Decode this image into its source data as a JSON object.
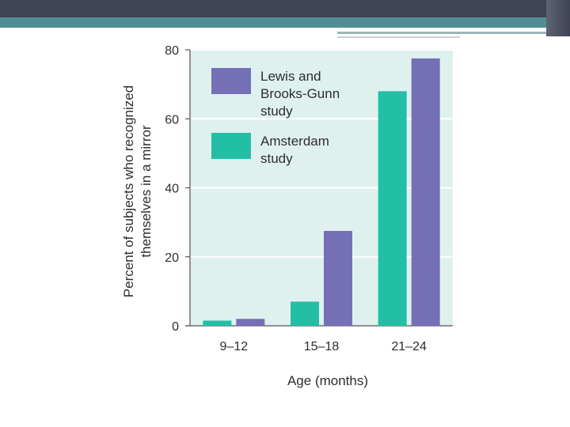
{
  "chart_data": {
    "type": "bar",
    "title": "",
    "xlabel": "Age (months)",
    "ylabel": [
      "Percent of subjects who recognized",
      "themselves in a mirror"
    ],
    "ylim": [
      0,
      80
    ],
    "yticks": [
      "0",
      "20",
      "40",
      "60",
      "80"
    ],
    "grid": true,
    "categories": [
      "9–12",
      "15–18",
      "21–24"
    ],
    "series": [
      {
        "name": "Amsterdam study",
        "legend_lines": [
          "Amsterdam",
          "study"
        ],
        "color": "#22bfa6",
        "values": [
          1.5,
          7,
          68
        ]
      },
      {
        "name": "Lewis and Brooks-Gunn study",
        "legend_lines": [
          "Lewis and",
          "Brooks-Gunn",
          "study"
        ],
        "color": "#7570b5",
        "values": [
          2,
          27.5,
          77.5
        ]
      }
    ],
    "legend": {
      "position": "top-left",
      "order": [
        "Lewis and Brooks-Gunn study",
        "Amsterdam study"
      ]
    },
    "colors": {
      "plot_background": "#dff1ef",
      "gridline": "#ffffff",
      "axis": "#555555"
    }
  }
}
